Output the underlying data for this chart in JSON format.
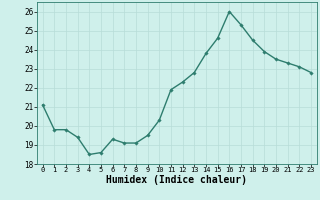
{
  "x": [
    0,
    1,
    2,
    3,
    4,
    5,
    6,
    7,
    8,
    9,
    10,
    11,
    12,
    13,
    14,
    15,
    16,
    17,
    18,
    19,
    20,
    21,
    22,
    23
  ],
  "y": [
    21.1,
    19.8,
    19.8,
    19.4,
    18.5,
    18.6,
    19.3,
    19.1,
    19.1,
    19.5,
    20.3,
    21.9,
    22.3,
    22.8,
    23.8,
    24.6,
    26.0,
    25.3,
    24.5,
    23.9,
    23.5,
    23.3,
    23.1,
    22.8
  ],
  "line_color": "#2e7d6e",
  "marker": "D",
  "marker_size": 1.8,
  "linewidth": 1.0,
  "xlabel": "Humidex (Indice chaleur)",
  "xlabel_fontsize": 7,
  "ylim": [
    18,
    26.5
  ],
  "xlim": [
    -0.5,
    23.5
  ],
  "yticks": [
    18,
    19,
    20,
    21,
    22,
    23,
    24,
    25,
    26
  ],
  "xticks": [
    0,
    1,
    2,
    3,
    4,
    5,
    6,
    7,
    8,
    9,
    10,
    11,
    12,
    13,
    14,
    15,
    16,
    17,
    18,
    19,
    20,
    21,
    22,
    23
  ],
  "xtick_fontsize": 5,
  "ytick_fontsize": 5.5,
  "bg_color": "#cff0eb",
  "grid_color": "#b8ddd8",
  "spine_color": "#2e7d6e"
}
